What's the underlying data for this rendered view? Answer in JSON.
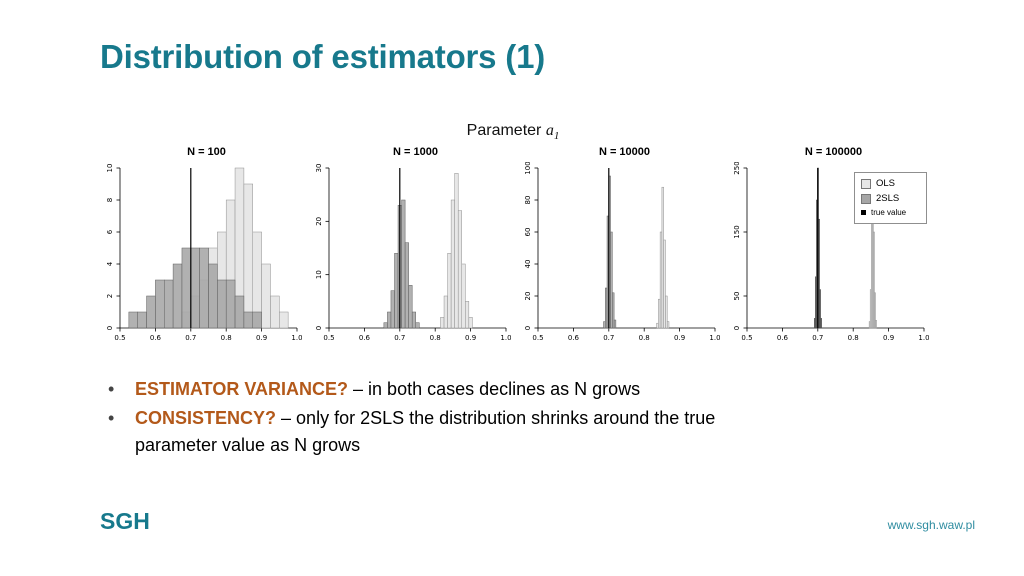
{
  "slide": {
    "title": "Distribution of estimators (1)",
    "subtitle_text": "Parameter",
    "subtitle_symbol": "a",
    "subtitle_subscript": "1",
    "footer_logo": "SGH",
    "footer_url": "www.sgh.waw.pl"
  },
  "bullets": [
    {
      "lead": "ESTIMATOR VARIANCE?",
      "rest": "– in both cases declines as N grows"
    },
    {
      "lead": "CONSISTENCY?",
      "rest": "– only for 2SLS the distribution shrinks around the true parameter value as N grows"
    }
  ],
  "legend": {
    "items": [
      {
        "label": "OLS",
        "fill": "#e7e7e7",
        "stroke": "#777777"
      },
      {
        "label": "2SLS",
        "fill": "#a6a6a6",
        "stroke": "#777777"
      },
      {
        "label": "true value",
        "fill": "#000000",
        "stroke": "#000000"
      }
    ]
  },
  "colors": {
    "accent_teal": "#17798c",
    "bullet_lead_orange": "#b3591a",
    "ols_fill": "#e7e7e7",
    "tsls_fill": "#a6a6a6",
    "true_value": "#000000"
  },
  "chart_data": [
    {
      "type": "bar",
      "title": "N = 100",
      "xlabel": "",
      "ylabel": "",
      "xlim": [
        0.5,
        1.0
      ],
      "xticks": [
        0.5,
        0.6,
        0.7,
        0.8,
        0.9,
        1.0
      ],
      "ylim": [
        0,
        10
      ],
      "yticks": [
        0,
        2,
        4,
        6,
        8,
        10
      ],
      "true_value": 0.7,
      "series": [
        {
          "name": "OLS",
          "fill": "#e7e7e7",
          "stroke": "#8f8f8f",
          "bin_start": 0.675,
          "bin_width": 0.025,
          "counts": [
            1,
            2,
            3,
            5,
            6,
            8,
            10,
            9,
            6,
            4,
            2,
            1
          ]
        },
        {
          "name": "2SLS",
          "fill": "#a6a6a6",
          "stroke": "#5f5f5f",
          "opacity": 0.88,
          "bin_start": 0.525,
          "bin_width": 0.025,
          "counts": [
            1,
            1,
            2,
            3,
            3,
            4,
            5,
            5,
            5,
            4,
            3,
            3,
            2,
            1,
            1
          ]
        }
      ]
    },
    {
      "type": "bar",
      "title": "N = 1000",
      "xlabel": "",
      "ylabel": "",
      "xlim": [
        0.5,
        1.0
      ],
      "xticks": [
        0.5,
        0.6,
        0.7,
        0.8,
        0.9,
        1.0
      ],
      "ylim": [
        0,
        30
      ],
      "yticks": [
        0,
        10,
        20,
        30
      ],
      "true_value": 0.7,
      "series": [
        {
          "name": "OLS",
          "fill": "#e7e7e7",
          "stroke": "#8f8f8f",
          "bin_start": 0.815,
          "bin_width": 0.01,
          "counts": [
            2,
            6,
            14,
            24,
            29,
            22,
            12,
            5,
            2
          ]
        },
        {
          "name": "2SLS",
          "fill": "#a6a6a6",
          "stroke": "#5f5f5f",
          "opacity": 0.88,
          "bin_start": 0.655,
          "bin_width": 0.01,
          "counts": [
            1,
            3,
            7,
            14,
            23,
            24,
            16,
            8,
            3,
            1
          ]
        }
      ]
    },
    {
      "type": "bar",
      "title": "N = 10000",
      "xlabel": "",
      "ylabel": "",
      "xlim": [
        0.5,
        1.0
      ],
      "xticks": [
        0.5,
        0.6,
        0.7,
        0.8,
        0.9,
        1.0
      ],
      "ylim": [
        0,
        100
      ],
      "yticks": [
        0,
        20,
        40,
        60,
        80,
        100
      ],
      "true_value": 0.7,
      "series": [
        {
          "name": "OLS",
          "fill": "#e7e7e7",
          "stroke": "#8f8f8f",
          "bin_start": 0.835,
          "bin_width": 0.005,
          "counts": [
            3,
            18,
            60,
            88,
            55,
            20,
            4
          ]
        },
        {
          "name": "2SLS",
          "fill": "#a6a6a6",
          "stroke": "#5f5f5f",
          "opacity": 0.88,
          "bin_start": 0.685,
          "bin_width": 0.005,
          "counts": [
            4,
            25,
            70,
            95,
            60,
            22,
            5
          ]
        }
      ]
    },
    {
      "type": "bar",
      "title": "N = 100000",
      "xlabel": "",
      "ylabel": "",
      "xlim": [
        0.5,
        1.0
      ],
      "xticks": [
        0.5,
        0.6,
        0.7,
        0.8,
        0.9,
        1.0
      ],
      "ylim": [
        0,
        250
      ],
      "yticks": [
        0,
        50,
        150,
        250
      ],
      "true_value": 0.7,
      "series": [
        {
          "name": "OLS",
          "fill": "#d9d9d9",
          "stroke": "#8f8f8f",
          "bin_start": 0.845,
          "bin_width": 0.003,
          "counts": [
            10,
            60,
            170,
            230,
            150,
            55,
            12
          ]
        },
        {
          "name": "2SLS",
          "fill": "#7a7a7a",
          "stroke": "#3f3f3f",
          "opacity": 0.95,
          "bin_start": 0.69,
          "bin_width": 0.003,
          "counts": [
            15,
            80,
            200,
            250,
            170,
            60,
            15
          ]
        }
      ]
    }
  ]
}
